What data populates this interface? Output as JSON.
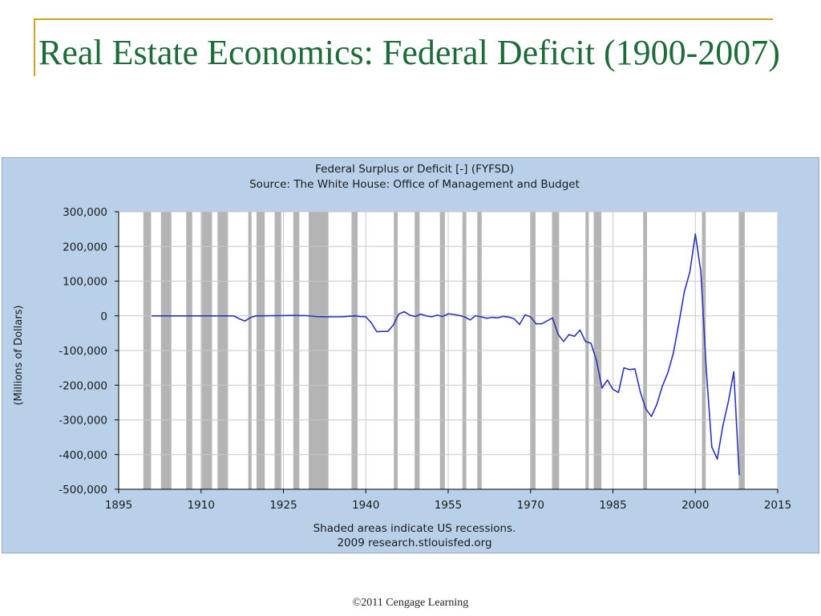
{
  "slide": {
    "title": "Real Estate Economics: Federal Deficit (1900-2007)",
    "footer": "©2011 Cengage Learning",
    "title_color": "#1e6b3a",
    "accent_color": "#c9a227"
  },
  "chart_data": {
    "type": "line",
    "title": "Federal Surplus or Deficit [-] (FYFSD)",
    "subtitle": "Source: The White House: Office of Management and Budget",
    "xlabel": "",
    "ylabel": "(Millions of Dollars)",
    "notes": [
      "Shaded areas indicate US recessions.",
      "2009 research.stlouisfed.org"
    ],
    "xlim": [
      1895,
      2015
    ],
    "ylim": [
      -500000,
      300000
    ],
    "x_ticks": [
      1895,
      1910,
      1925,
      1940,
      1955,
      1970,
      1985,
      2000,
      2015
    ],
    "x_tick_labels": [
      "1895",
      "1910",
      "1925",
      "1940",
      "1955",
      "1970",
      "1985",
      "2000",
      "2015"
    ],
    "y_ticks": [
      300000,
      200000,
      100000,
      0,
      -100000,
      -200000,
      -300000,
      -400000,
      -500000
    ],
    "y_tick_labels": [
      "300,000",
      "200,000",
      "100,000",
      "0",
      "-100,000",
      "-200,000",
      "-300,000",
      "-400,000",
      "-500,000"
    ],
    "grid": true,
    "line_color": "#2b34b8",
    "recession_color": "#b4b4b4",
    "plot_background": "#ffffff",
    "panel_background": "#b9d1e8",
    "recessions": [
      [
        1899.5,
        1900.9
      ],
      [
        1902.7,
        1904.6
      ],
      [
        1907.3,
        1908.4
      ],
      [
        1910.1,
        1912.0
      ],
      [
        1913.0,
        1914.9
      ],
      [
        1918.6,
        1919.2
      ],
      [
        1920.1,
        1921.6
      ],
      [
        1923.4,
        1924.6
      ],
      [
        1926.8,
        1927.9
      ],
      [
        1929.6,
        1933.2
      ],
      [
        1937.4,
        1938.5
      ],
      [
        1945.1,
        1945.8
      ],
      [
        1948.9,
        1949.8
      ],
      [
        1953.5,
        1954.4
      ],
      [
        1957.6,
        1958.3
      ],
      [
        1960.3,
        1961.1
      ],
      [
        1969.9,
        1970.9
      ],
      [
        1973.9,
        1975.2
      ],
      [
        1980.0,
        1980.6
      ],
      [
        1981.5,
        1982.9
      ],
      [
        1990.5,
        1991.2
      ],
      [
        2001.2,
        2001.9
      ],
      [
        2007.9,
        2009.0
      ]
    ],
    "series": [
      {
        "values": [
          [
            1901,
            0
          ],
          [
            1905,
            0
          ],
          [
            1910,
            0
          ],
          [
            1915,
            0
          ],
          [
            1916,
            -500
          ],
          [
            1917,
            -9000
          ],
          [
            1918,
            -15000
          ],
          [
            1919,
            -5000
          ],
          [
            1920,
            0
          ],
          [
            1925,
            800
          ],
          [
            1926,
            1000
          ],
          [
            1927,
            1200
          ],
          [
            1928,
            900
          ],
          [
            1929,
            700
          ],
          [
            1930,
            -500
          ],
          [
            1931,
            -2000
          ],
          [
            1932,
            -2500
          ],
          [
            1933,
            -2600
          ],
          [
            1934,
            -3000
          ],
          [
            1935,
            -2800
          ],
          [
            1936,
            -2500
          ],
          [
            1937,
            -1000
          ],
          [
            1938,
            0
          ],
          [
            1939,
            -2000
          ],
          [
            1940,
            -3000
          ],
          [
            1941,
            -20000
          ],
          [
            1942,
            -46000
          ],
          [
            1943,
            -45000
          ],
          [
            1944,
            -45000
          ],
          [
            1945,
            -27000
          ],
          [
            1946,
            5000
          ],
          [
            1947,
            12000
          ],
          [
            1948,
            2000
          ],
          [
            1949,
            -2000
          ],
          [
            1950,
            5000
          ],
          [
            1951,
            0
          ],
          [
            1952,
            -3000
          ],
          [
            1953,
            2000
          ],
          [
            1954,
            -2000
          ],
          [
            1955,
            6000
          ],
          [
            1956,
            4000
          ],
          [
            1957,
            1000
          ],
          [
            1958,
            -3000
          ],
          [
            1959,
            -12000
          ],
          [
            1960,
            300
          ],
          [
            1961,
            -3000
          ],
          [
            1962,
            -7000
          ],
          [
            1963,
            -4500
          ],
          [
            1964,
            -6000
          ],
          [
            1965,
            -1500
          ],
          [
            1966,
            -3500
          ],
          [
            1967,
            -8500
          ],
          [
            1968,
            -25000
          ],
          [
            1969,
            3000
          ],
          [
            1970,
            -3000
          ],
          [
            1971,
            -23000
          ],
          [
            1972,
            -23000
          ],
          [
            1973,
            -15000
          ],
          [
            1974,
            -6000
          ],
          [
            1975,
            -53000
          ],
          [
            1976,
            -74000
          ],
          [
            1977,
            -54000
          ],
          [
            1978,
            -59000
          ],
          [
            1979,
            -41000
          ],
          [
            1980,
            -74000
          ],
          [
            1981,
            -79000
          ],
          [
            1982,
            -128000
          ],
          [
            1983,
            -208000
          ],
          [
            1984,
            -185000
          ],
          [
            1985,
            -212000
          ],
          [
            1986,
            -221000
          ],
          [
            1987,
            -150000
          ],
          [
            1988,
            -155000
          ],
          [
            1989,
            -153000
          ],
          [
            1990,
            -221000
          ],
          [
            1991,
            -269000
          ],
          [
            1992,
            -290000
          ],
          [
            1993,
            -255000
          ],
          [
            1994,
            -203000
          ],
          [
            1995,
            -164000
          ],
          [
            1996,
            -107000
          ],
          [
            1997,
            -22000
          ],
          [
            1998,
            69000
          ],
          [
            1999,
            126000
          ],
          [
            2000,
            236000
          ],
          [
            2001,
            128000
          ],
          [
            2002,
            -158000
          ],
          [
            2003,
            -378000
          ],
          [
            2004,
            -413000
          ],
          [
            2005,
            -318000
          ],
          [
            2006,
            -248000
          ],
          [
            2007,
            -161000
          ],
          [
            2008,
            -459000
          ]
        ]
      }
    ]
  }
}
